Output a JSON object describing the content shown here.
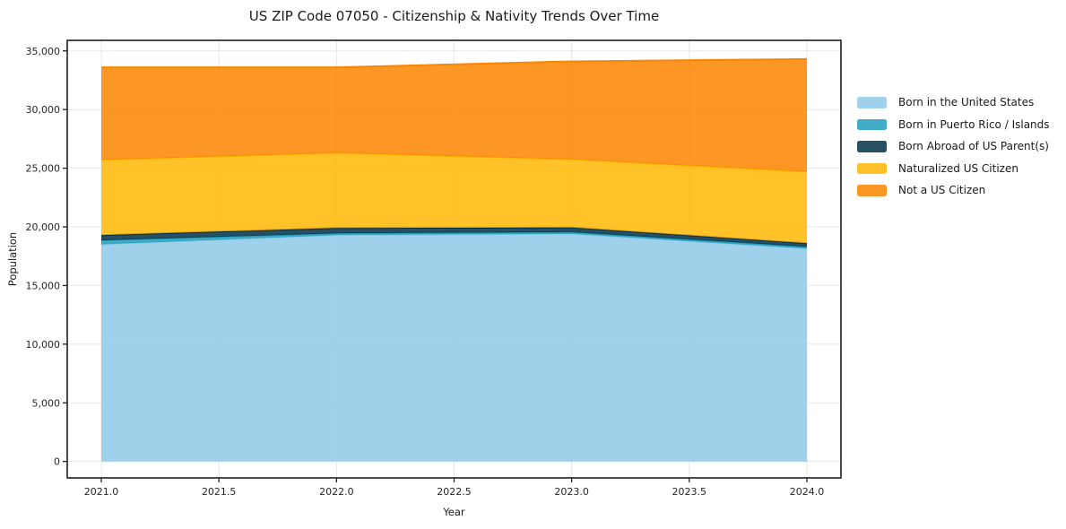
{
  "chart_data": {
    "type": "area",
    "stacked": true,
    "title": "US ZIP Code 07050 - Citizenship & Nativity Trends Over Time",
    "xlabel": "Year",
    "ylabel": "Population",
    "x": [
      2021,
      2022,
      2023,
      2024
    ],
    "series": [
      {
        "name": "Born in the United States",
        "color": "#8ecae6",
        "values": [
          18500,
          19300,
          19400,
          18150
        ]
      },
      {
        "name": "Born in Puerto Rico / Islands",
        "color": "#219ebc",
        "values": [
          350,
          150,
          150,
          150
        ]
      },
      {
        "name": "Born Abroad of US Parent(s)",
        "color": "#023047",
        "values": [
          450,
          450,
          400,
          300
        ]
      },
      {
        "name": "Naturalized US Citizen",
        "color": "#ffb703",
        "values": [
          6400,
          6400,
          5800,
          6100
        ]
      },
      {
        "name": "Not a US Citizen",
        "color": "#fb8500",
        "values": [
          7900,
          7300,
          8350,
          9600
        ]
      }
    ],
    "totals": [
      33600,
      33600,
      34100,
      34300
    ],
    "fill_opacity": 0.85,
    "xlim": [
      2020.855,
      2024.145
    ],
    "ylim": [
      -1400,
      35900
    ],
    "xticks": [
      2021.0,
      2021.5,
      2022.0,
      2022.5,
      2023.0,
      2023.5,
      2024.0
    ],
    "xtick_labels": [
      "2021.0",
      "2021.5",
      "2022.0",
      "2022.5",
      "2023.0",
      "2023.5",
      "2024.0"
    ],
    "yticks": [
      0,
      5000,
      10000,
      15000,
      20000,
      25000,
      30000,
      35000
    ],
    "ytick_labels": [
      "0",
      "5,000",
      "10,000",
      "15,000",
      "20,000",
      "25,000",
      "30,000",
      "35,000"
    ],
    "grid": true,
    "grid_color": "#e7e7e7",
    "frame_color": "#1f1f1f",
    "tick_text_color": "#262626",
    "background": "#ffffff",
    "legend_position": "right-outside"
  }
}
